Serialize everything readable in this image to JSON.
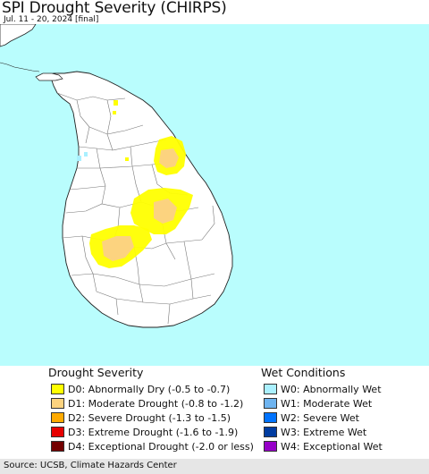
{
  "title": "SPI Drought Severity (CHIRPS)",
  "subtitle": "Jul. 11 - 20, 2024 [final]",
  "colors": {
    "ocean": "#b9fdfd",
    "land": "#ffffff",
    "border": "#777777",
    "coast": "#222222",
    "d0": "#ffff00",
    "d1": "#fcd37f",
    "wet0": "#aef0f5"
  },
  "legend": {
    "drought_title": "Drought Severity",
    "wet_title": "Wet Conditions",
    "drought": [
      {
        "label": "D0: Abnormally Dry (-0.5 to -0.7)",
        "color": "#ffff00"
      },
      {
        "label": "D1: Moderate Drought (-0.8 to -1.2)",
        "color": "#fcd37f"
      },
      {
        "label": "D2: Severe Drought (-1.3 to -1.5)",
        "color": "#ffaa00"
      },
      {
        "label": "D3: Extreme Drought (-1.6 to -1.9)",
        "color": "#e60000"
      },
      {
        "label": "D4: Exceptional Drought (-2.0 or less)",
        "color": "#730000"
      }
    ],
    "wet": [
      {
        "label": "W0: Abnormally Wet",
        "color": "#aaf0ff"
      },
      {
        "label": "W1: Moderate Wet",
        "color": "#6eb4f0"
      },
      {
        "label": "W2: Severe Wet",
        "color": "#0073ff"
      },
      {
        "label": "W3: Extreme Wet",
        "color": "#003ca0"
      },
      {
        "label": "W4: Exceptional Wet",
        "color": "#9600c8"
      }
    ]
  },
  "footer": "Source: UCSB, Climate Hazards Center"
}
